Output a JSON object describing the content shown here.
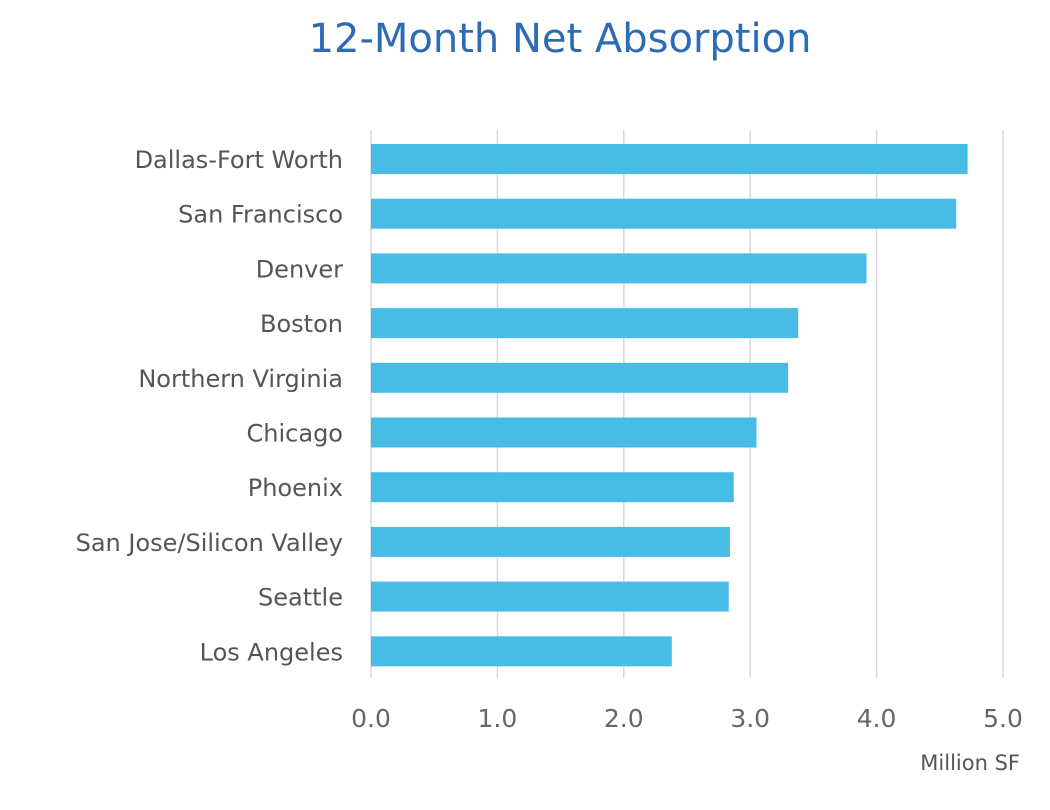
{
  "chart_data": {
    "type": "bar",
    "orientation": "horizontal",
    "title": "12-Month Net Absorption",
    "categories": [
      "Dallas-Fort Worth",
      "San Francisco",
      "Denver",
      "Boston",
      "Northern Virginia",
      "Chicago",
      "Phoenix",
      "San Jose/Silicon Valley",
      "Seattle",
      "Los Angeles"
    ],
    "values": [
      4.72,
      4.63,
      3.92,
      3.38,
      3.3,
      3.05,
      2.87,
      2.84,
      2.83,
      2.38
    ],
    "xlim": [
      0,
      5
    ],
    "xticks": [
      "0.0",
      "1.0",
      "2.0",
      "3.0",
      "4.0",
      "5.0"
    ],
    "xlabel": "Million SF",
    "ylabel": "",
    "grid": true,
    "legend": "none",
    "bar_color": "#47bde6",
    "title_color": "#2b6cb5"
  }
}
